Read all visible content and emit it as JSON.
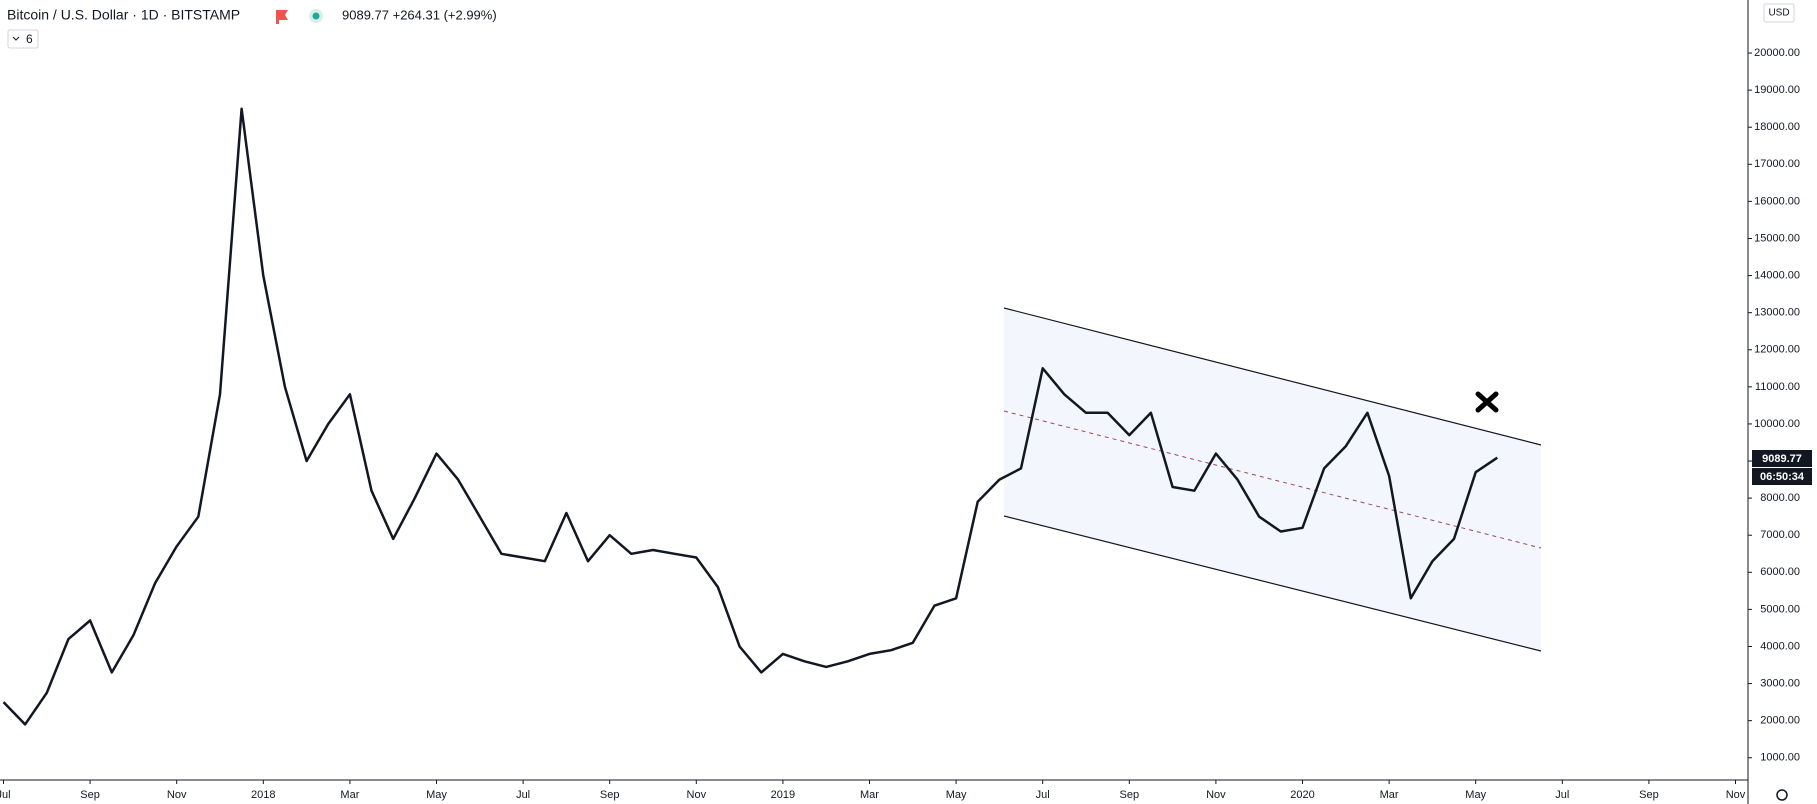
{
  "chart_data": {
    "type": "line",
    "title": "Bitcoin / U.S. Dollar · 1D · BITSTAMP",
    "subtitle": "9089.77 +264.31 (+2.99%)",
    "indicator_count": "6",
    "currency": "USD",
    "last_price": "9089.77",
    "countdown": "06:50:34",
    "color": "#131722",
    "values": [
      2500,
      1900,
      2750,
      4200,
      4700,
      3300,
      4300,
      5700,
      6700,
      7500,
      10800,
      18500,
      14000,
      11000,
      9000,
      10000,
      10800,
      8200,
      6900,
      8000,
      9200,
      8500,
      7500,
      6500,
      6400,
      6300,
      7600,
      6300,
      7000,
      6500,
      6600,
      6500,
      6400,
      5600,
      4000,
      3300,
      3800,
      3600,
      3450,
      3600,
      3800,
      3900,
      4100,
      5100,
      5300,
      7900,
      8500,
      8800,
      11500,
      10800,
      10300,
      10300,
      9700,
      10300,
      8300,
      8200,
      9200,
      8500,
      7500,
      7100,
      7200,
      8800,
      9400,
      10300,
      8600,
      5300,
      6300,
      6900,
      8700,
      9089.77
    ],
    "xticks": [
      "Jul",
      "Sep",
      "Nov",
      "2018",
      "Mar",
      "May",
      "Jul",
      "Sep",
      "Nov",
      "2019",
      "Mar",
      "May",
      "Jul",
      "Sep",
      "Nov",
      "2020",
      "Mar",
      "May",
      "Jul",
      "Sep",
      "Nov"
    ],
    "ylim": [
      400,
      21430
    ],
    "yticks": [
      {
        "value": 1000,
        "label": "1000.00"
      },
      {
        "value": 2000,
        "label": "2000.00"
      },
      {
        "value": 3000,
        "label": "3000.00"
      },
      {
        "value": 4000,
        "label": "4000.00"
      },
      {
        "value": 5000,
        "label": "5000.00"
      },
      {
        "value": 6000,
        "label": "6000.00"
      },
      {
        "value": 7000,
        "label": "7000.00"
      },
      {
        "value": 8000,
        "label": "8000.00"
      },
      {
        "value": 9000,
        "label": "9000.00"
      },
      {
        "value": 10000,
        "label": "10000.00"
      },
      {
        "value": 11000,
        "label": "11000.00"
      },
      {
        "value": 12000,
        "label": "12000.00"
      },
      {
        "value": 13000,
        "label": "13000.00"
      },
      {
        "value": 14000,
        "label": "14000.00"
      },
      {
        "value": 15000,
        "label": "15000.00"
      },
      {
        "value": 16000,
        "label": "16000.00"
      },
      {
        "value": 17000,
        "label": "17000.00"
      },
      {
        "value": 18000,
        "label": "18000.00"
      },
      {
        "value": 19000,
        "label": "19000.00"
      },
      {
        "value": 20000,
        "label": "20000.00"
      }
    ],
    "grid": false
  }
}
